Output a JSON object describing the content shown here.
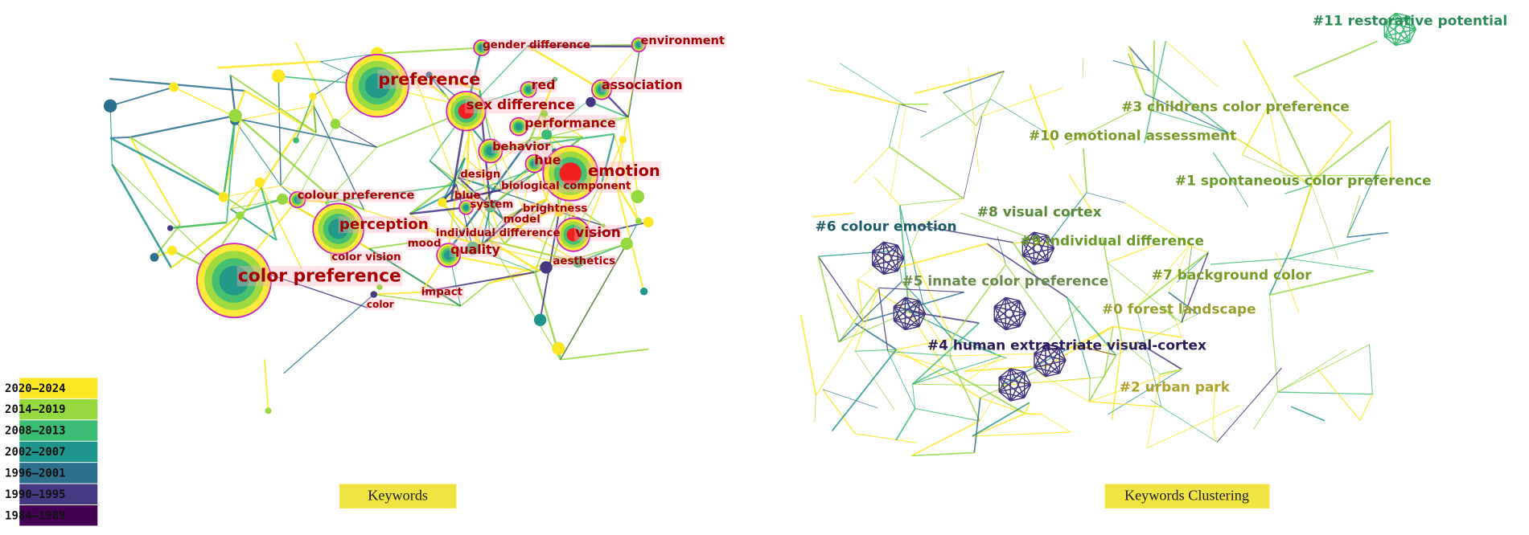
{
  "legend": {
    "items": [
      {
        "label": "2020–2024",
        "color": "#fde725"
      },
      {
        "label": "2014–2019",
        "color": "#95d840"
      },
      {
        "label": "2008–2013",
        "color": "#3cbb75"
      },
      {
        "label": "2002–2007",
        "color": "#1f968b"
      },
      {
        "label": "1996–2001",
        "color": "#2d708e"
      },
      {
        "label": "1990–1995",
        "color": "#453781"
      },
      {
        "label": "1984–1989",
        "color": "#440154"
      }
    ]
  },
  "keywords_panel": {
    "caption": "Keywords",
    "nodes": [
      {
        "label": "preference"
      },
      {
        "label": "gender difference"
      },
      {
        "label": "environment"
      },
      {
        "label": "red"
      },
      {
        "label": "association"
      },
      {
        "label": "sex difference"
      },
      {
        "label": "performance"
      },
      {
        "label": "behavior"
      },
      {
        "label": "hue"
      },
      {
        "label": "emotion"
      },
      {
        "label": "design"
      },
      {
        "label": "biological component"
      },
      {
        "label": "colour preference"
      },
      {
        "label": "blue"
      },
      {
        "label": "system"
      },
      {
        "label": "brightness"
      },
      {
        "label": "model"
      },
      {
        "label": "perception"
      },
      {
        "label": "individual difference"
      },
      {
        "label": "vision"
      },
      {
        "label": "mood"
      },
      {
        "label": "quality"
      },
      {
        "label": "color vision"
      },
      {
        "label": "aesthetics"
      },
      {
        "label": "color preference"
      },
      {
        "label": "impact"
      },
      {
        "label": "color"
      }
    ]
  },
  "clusters_panel": {
    "caption": "Keywords Clustering",
    "clusters": [
      {
        "label": "#11 restorative potential"
      },
      {
        "label": "#3 childrens color preference"
      },
      {
        "label": "#10 emotional assessment"
      },
      {
        "label": "#1 spontaneous color preference"
      },
      {
        "label": "#8 visual cortex"
      },
      {
        "label": "#6 colour emotion"
      },
      {
        "label": "#9 individual difference"
      },
      {
        "label": "#7 background color"
      },
      {
        "label": "#5 innate color preference"
      },
      {
        "label": "#0 forest landscape"
      },
      {
        "label": "#4 human extrastriate visual-cortex"
      },
      {
        "label": "#2 urban park"
      }
    ]
  }
}
